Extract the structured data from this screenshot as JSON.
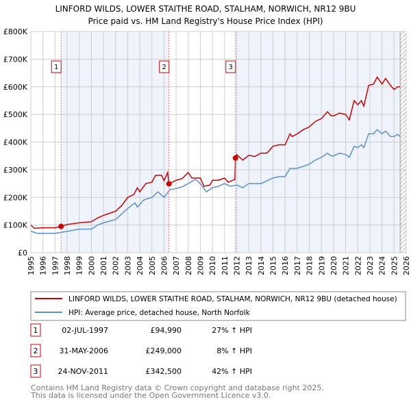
{
  "chart_data": {
    "type": "line",
    "title": "LINFORD WILDS, LOWER STAITHE ROAD, STALHAM, NORWICH, NR12 9BU",
    "subtitle": "Price paid vs. HM Land Registry's House Price Index (HPI)",
    "xlim": [
      1995,
      2026
    ],
    "ylim": [
      0,
      800000
    ],
    "y_ticks": [
      {
        "v": 0,
        "label": "£0"
      },
      {
        "v": 100000,
        "label": "£100K"
      },
      {
        "v": 200000,
        "label": "£200K"
      },
      {
        "v": 300000,
        "label": "£300K"
      },
      {
        "v": 400000,
        "label": "£400K"
      },
      {
        "v": 500000,
        "label": "£500K"
      },
      {
        "v": 600000,
        "label": "£600K"
      },
      {
        "v": 700000,
        "label": "£700K"
      },
      {
        "v": 800000,
        "label": "£800K"
      }
    ],
    "x_ticks": [
      "1995",
      "1996",
      "1997",
      "1998",
      "1999",
      "2000",
      "2001",
      "2002",
      "2003",
      "2004",
      "2005",
      "2006",
      "2007",
      "2008",
      "2009",
      "2010",
      "2011",
      "2012",
      "2013",
      "2014",
      "2015",
      "2016",
      "2017",
      "2018",
      "2019",
      "2020",
      "2021",
      "2022",
      "2023",
      "2024",
      "2025",
      "2026"
    ],
    "grid": true,
    "legend_placement": "below",
    "series": [
      {
        "name": "LINFORD WILDS, LOWER STAITHE ROAD, STALHAM, NORWICH, NR12 9BU (detached house)",
        "color": "#cc0000",
        "points": [
          [
            1995,
            100
          ],
          [
            1995.3,
            88
          ],
          [
            1996,
            90
          ],
          [
            1997,
            90
          ],
          [
            1997.5,
            95
          ],
          [
            1998,
            102
          ],
          [
            1999,
            108
          ],
          [
            2000,
            112
          ],
          [
            2000.5,
            125
          ],
          [
            2001,
            135
          ],
          [
            2002,
            150
          ],
          [
            2002.5,
            170
          ],
          [
            2003,
            200
          ],
          [
            2003.5,
            210
          ],
          [
            2003.8,
            235
          ],
          [
            2004,
            220
          ],
          [
            2004.5,
            250
          ],
          [
            2005,
            255
          ],
          [
            2005.3,
            280
          ],
          [
            2005.8,
            280
          ],
          [
            2006,
            260
          ],
          [
            2006.3,
            290
          ],
          [
            2006.41,
            249
          ],
          [
            2007,
            262
          ],
          [
            2007.5,
            268
          ],
          [
            2008,
            290
          ],
          [
            2008.3,
            270
          ],
          [
            2009,
            270
          ],
          [
            2009.3,
            240
          ],
          [
            2009.8,
            245
          ],
          [
            2010,
            262
          ],
          [
            2010.5,
            262
          ],
          [
            2011,
            270
          ],
          [
            2011.3,
            255
          ],
          [
            2011.85,
            265
          ],
          [
            2011.9,
            342.5
          ],
          [
            2012,
            355
          ],
          [
            2012.5,
            335
          ],
          [
            2013,
            352
          ],
          [
            2013.5,
            348
          ],
          [
            2014,
            360
          ],
          [
            2014.5,
            360
          ],
          [
            2015,
            385
          ],
          [
            2015.5,
            390
          ],
          [
            2016,
            390
          ],
          [
            2016.4,
            430
          ],
          [
            2016.6,
            420
          ],
          [
            2017,
            430
          ],
          [
            2017.5,
            445
          ],
          [
            2018,
            455
          ],
          [
            2018.5,
            475
          ],
          [
            2019,
            485
          ],
          [
            2019.5,
            510
          ],
          [
            2019.8,
            495
          ],
          [
            2020,
            495
          ],
          [
            2020.5,
            505
          ],
          [
            2021,
            500
          ],
          [
            2021.3,
            480
          ],
          [
            2021.7,
            550
          ],
          [
            2022,
            535
          ],
          [
            2022.3,
            550
          ],
          [
            2022.5,
            530
          ],
          [
            2022.9,
            605
          ],
          [
            2023.3,
            610
          ],
          [
            2023.6,
            635
          ],
          [
            2024,
            610
          ],
          [
            2024.3,
            630
          ],
          [
            2024.7,
            605
          ],
          [
            2025,
            590
          ],
          [
            2025.3,
            600
          ],
          [
            2025.5,
            600
          ]
        ]
      },
      {
        "name": "HPI: Average price, detached house, North Norfolk",
        "color": "#5b8fd0",
        "points": [
          [
            1995,
            78
          ],
          [
            1995.5,
            70
          ],
          [
            1996,
            70
          ],
          [
            1997,
            70
          ],
          [
            1998,
            77
          ],
          [
            1999,
            85
          ],
          [
            2000,
            85
          ],
          [
            2000.5,
            100
          ],
          [
            2001,
            108
          ],
          [
            2002,
            120
          ],
          [
            2002.5,
            140
          ],
          [
            2003,
            160
          ],
          [
            2003.6,
            180
          ],
          [
            2003.8,
            165
          ],
          [
            2004.3,
            190
          ],
          [
            2005,
            200
          ],
          [
            2005.5,
            220
          ],
          [
            2006,
            200
          ],
          [
            2006.5,
            228
          ],
          [
            2007,
            232
          ],
          [
            2007.5,
            238
          ],
          [
            2008,
            250
          ],
          [
            2008.6,
            265
          ],
          [
            2009,
            250
          ],
          [
            2009.5,
            220
          ],
          [
            2010,
            235
          ],
          [
            2010.5,
            240
          ],
          [
            2011,
            250
          ],
          [
            2011.5,
            240
          ],
          [
            2012,
            245
          ],
          [
            2012.5,
            235
          ],
          [
            2013,
            250
          ],
          [
            2014,
            250
          ],
          [
            2015,
            270
          ],
          [
            2015.5,
            275
          ],
          [
            2016,
            275
          ],
          [
            2016.4,
            305
          ],
          [
            2017,
            305
          ],
          [
            2018,
            320
          ],
          [
            2018.5,
            335
          ],
          [
            2019,
            345
          ],
          [
            2019.5,
            360
          ],
          [
            2019.8,
            350
          ],
          [
            2020,
            350
          ],
          [
            2020.5,
            360
          ],
          [
            2021,
            355
          ],
          [
            2021.3,
            345
          ],
          [
            2021.7,
            385
          ],
          [
            2022,
            380
          ],
          [
            2022.3,
            390
          ],
          [
            2022.5,
            380
          ],
          [
            2022.9,
            430
          ],
          [
            2023.3,
            430
          ],
          [
            2023.6,
            445
          ],
          [
            2024,
            430
          ],
          [
            2024.3,
            440
          ],
          [
            2024.7,
            420
          ],
          [
            2025,
            420
          ],
          [
            2025.3,
            428
          ],
          [
            2025.5,
            420
          ]
        ]
      }
    ],
    "y_units_note": "points y in £K",
    "sales": [
      {
        "n": "1",
        "x": 1997.5,
        "y": 94.99,
        "date": "02-JUL-1997",
        "price": "£94,990",
        "hpi": "27% ↑ HPI"
      },
      {
        "n": "2",
        "x": 2006.41,
        "y": 249,
        "date": "31-MAY-2006",
        "price": "£249,000",
        "hpi": "8% ↑ HPI"
      },
      {
        "n": "3",
        "x": 2011.9,
        "y": 342.5,
        "date": "24-NOV-2011",
        "price": "£342,500",
        "hpi": "42% ↑ HPI"
      }
    ],
    "forecast_from": 2025.5
  },
  "footer": {
    "line1": "Contains HM Land Registry data © Crown copyright and database right 2025.",
    "line2": "This data is licensed under the Open Government Licence v3.0."
  }
}
